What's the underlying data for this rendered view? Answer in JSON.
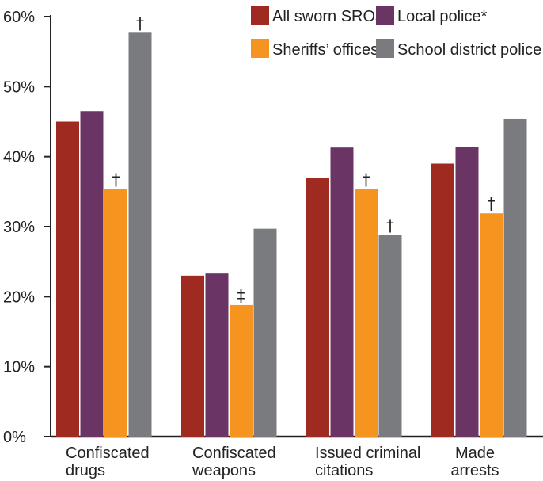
{
  "chart_data": {
    "type": "bar",
    "categories": [
      [
        "Confiscated",
        "drugs"
      ],
      [
        "Confiscated",
        "weapons"
      ],
      [
        "Issued criminal",
        "citations"
      ],
      [
        "Made",
        "arrests"
      ]
    ],
    "series": [
      {
        "name": "All sworn SROs",
        "color": "#9e2a20",
        "values": [
          45,
          23,
          37,
          39
        ],
        "markers": [
          "",
          "",
          "",
          ""
        ]
      },
      {
        "name": "Local police*",
        "color": "#6a3465",
        "values": [
          46.5,
          23.3,
          41.3,
          41.4
        ],
        "markers": [
          "",
          "",
          "",
          ""
        ]
      },
      {
        "name": "Sheriffs’ offices",
        "color": "#f5951f",
        "values": [
          35.4,
          18.8,
          35.4,
          31.9
        ],
        "markers": [
          "†",
          "‡",
          "†",
          "†"
        ]
      },
      {
        "name": "School district police",
        "color": "#7a7b7e",
        "values": [
          57.7,
          29.7,
          28.8,
          45.4
        ],
        "markers": [
          "†",
          "",
          "†",
          ""
        ]
      }
    ],
    "ylim": [
      0,
      60
    ],
    "yticks": [
      0,
      10,
      20,
      30,
      40,
      50,
      60
    ],
    "ytick_labels": [
      "0%",
      "10%",
      "20%",
      "30%",
      "40%",
      "50%",
      "60%"
    ],
    "grid": false,
    "legend_position": "top-right"
  }
}
